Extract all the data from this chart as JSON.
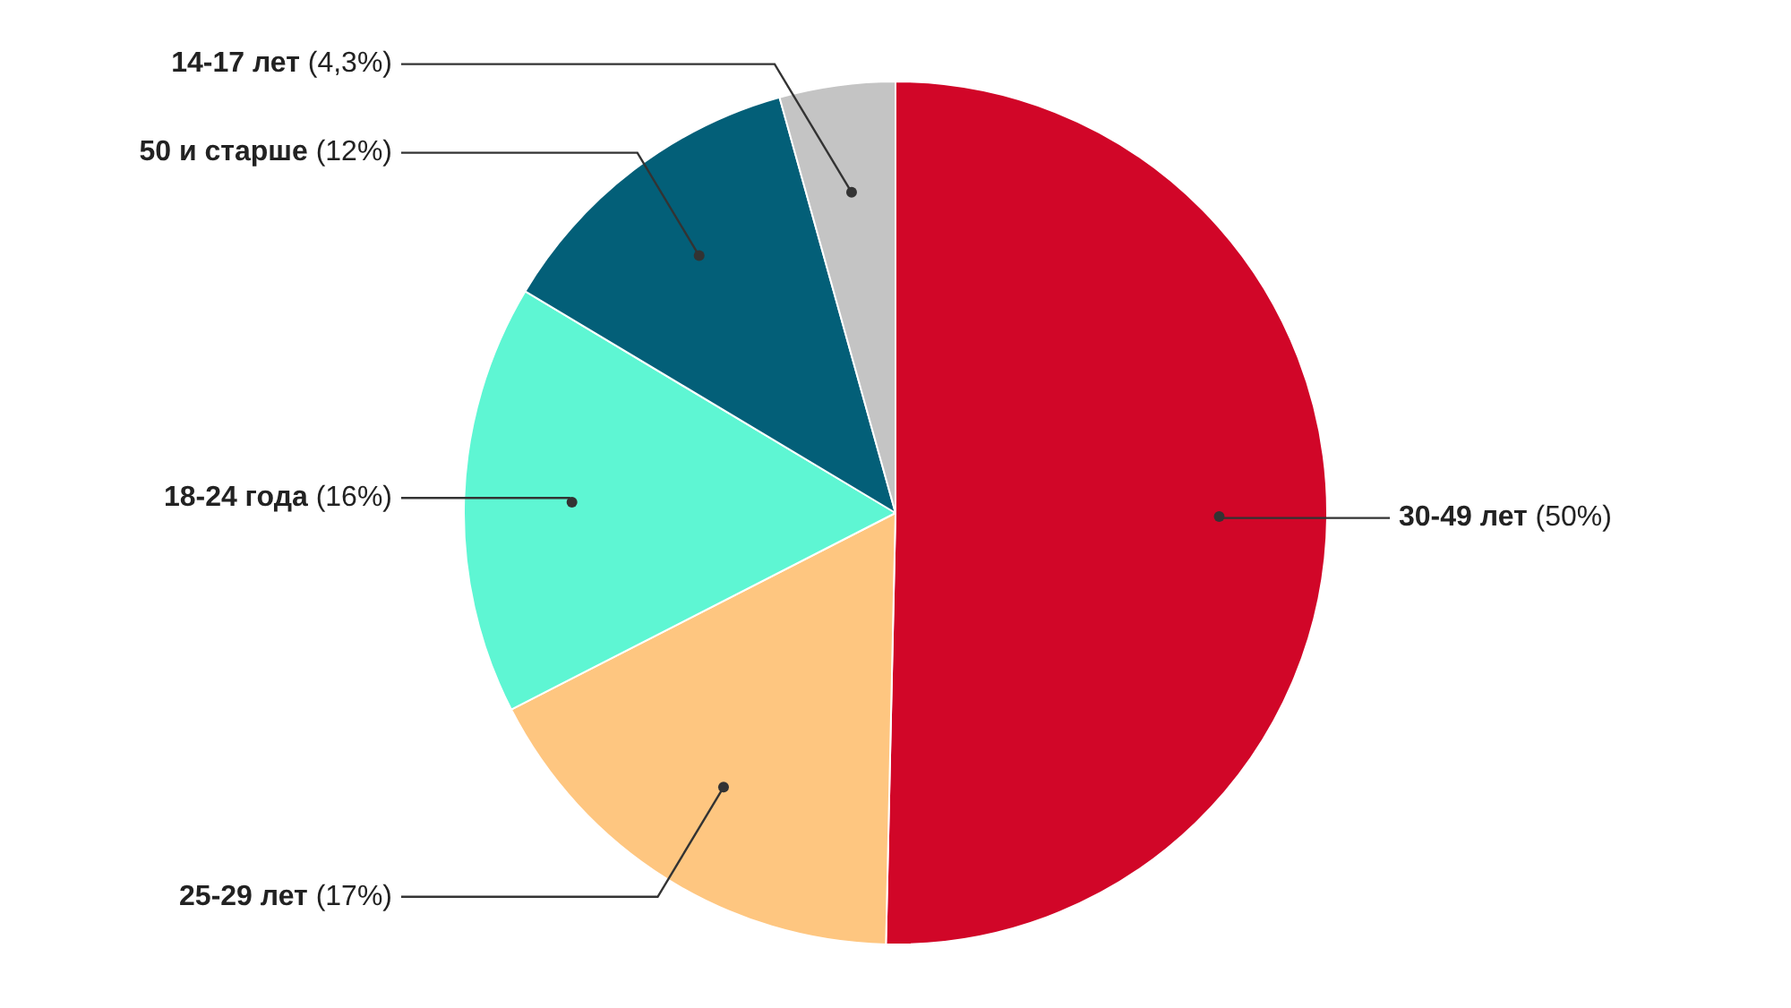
{
  "chart_data": {
    "type": "pie",
    "categories": [
      "30-49 лет",
      "25-29 лет",
      "18-24 года",
      "50 и старше",
      "14-17 лет"
    ],
    "values": [
      50,
      17,
      16,
      12,
      4.3
    ],
    "value_labels": [
      "(50%)",
      "(17%)",
      "(16%)",
      "(12%)",
      "(4,3%)"
    ],
    "colors": [
      "#d10628",
      "#fec680",
      "#5ef6d3",
      "#035f78",
      "#c4c4c4"
    ]
  }
}
